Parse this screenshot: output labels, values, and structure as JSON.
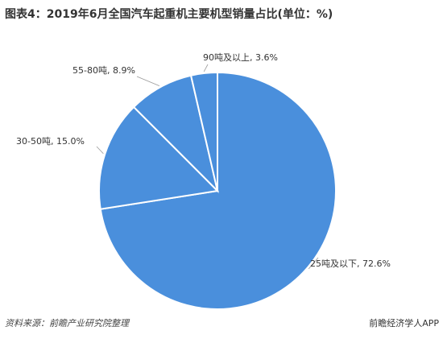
{
  "chart_data": {
    "type": "pie",
    "title": "图表4：2019年6月全国汽车起重机主要机型销量占比(单位：%)",
    "categories": [
      "25吨及以下",
      "30-50吨",
      "55-80吨",
      "90吨及以上"
    ],
    "values": [
      72.6,
      15.0,
      8.9,
      3.6
    ],
    "value_labels": [
      "72.6%",
      "15.0%",
      "8.9%",
      "3.6%"
    ],
    "label_separator": ", ",
    "colors": [
      "#4a8fdc",
      "#4a8fdc",
      "#4a8fdc",
      "#4a8fdc"
    ],
    "source": "资料来源：前瞻产业研究院整理",
    "brand": "前瞻经济学人APP"
  }
}
